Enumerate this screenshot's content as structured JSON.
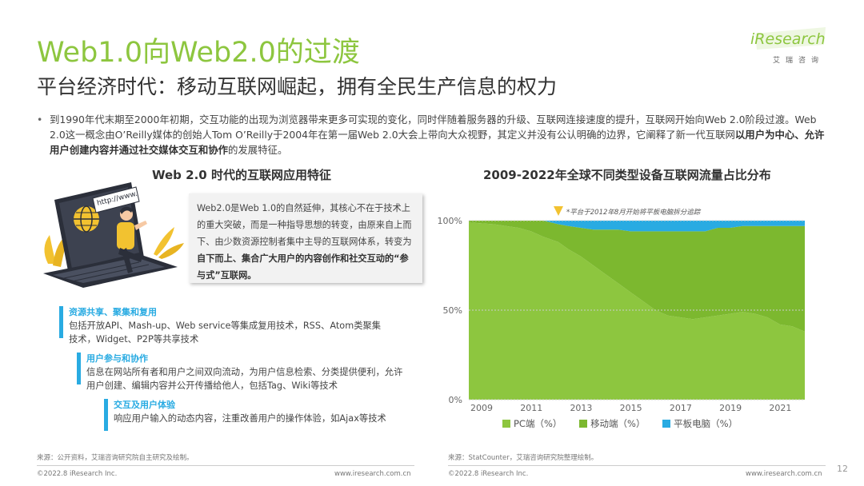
{
  "title": "Web1.0向Web2.0的过渡",
  "subtitle": "平台经济时代：移动互联网崛起，拥有全民生产信息的权力",
  "logo": {
    "word": "iResearch",
    "cn": "艾瑞咨询"
  },
  "intro": {
    "bullet": "•",
    "text_before_bold": "到1990年代末期至2000年初期，交互功能的出现为浏览器带来更多可实现的变化，同时伴随着服务器的升级、互联网连接速度的提升，互联网开始向Web 2.0阶段过渡。Web 2.0这一概念由O’Reilly媒体的创始人Tom O’Reilly于2004年在第一届Web 2.0大会上带向大众视野，其定义并没有公认明确的边界，它阐释了新一代互联网",
    "bold": "以用户为中心、允许用户创建内容并通过社交媒体交互和协作",
    "text_after_bold": "的发展特征。"
  },
  "left_panel": {
    "title": "Web 2.0 时代的互联网应用特征",
    "illustration_text": "http://www.",
    "description_plain": "Web2.0是Web 1.0的自然延伸，其核心不在于技术上的重大突破，而是一种指导思想的转变，由原来自上而下、由少数资源控制者集中主导的互联网体系，转变为",
    "description_bold": "自下而上、集合广大用户的内容创作和社交互动的“参与式”互联网。",
    "features": [
      {
        "title": "资源共享、聚集和复用",
        "text": "包括开放API、Mash-up、Web service等集成复用技术，RSS、Atom类聚集技术，Widget、P2P等共享技术"
      },
      {
        "title": "用户参与和协作",
        "text": "信息在网站所有者和用户之间双向流动，为用户信息检索、分类提供便利，允许用户创建、编辑内容并公开传播给他人，包括Tag、Wiki等技术"
      },
      {
        "title": "交互及用户体验",
        "text": "响应用户输入的动态内容，注重改善用户的操作体验，如Ajax等技术"
      }
    ],
    "source": "来源：公开资料，艾瑞咨询研究院自主研究及绘制。",
    "copyright": "©2022.8 iResearch Inc.",
    "url": "www.iresearch.com.cn"
  },
  "right_panel": {
    "source": "来源：StatCounter，艾瑞咨询研究院整理绘制。",
    "copyright": "©2022.8 iResearch Inc.",
    "url": "www.iresearch.com.cn"
  },
  "page_number": "12",
  "chart_data": {
    "type": "area",
    "title": "2009-2022年全球不同类型设备互联网流量占比分布",
    "annotation": "*平台于2012年8月开始将平板电脑拆分追踪",
    "x_ticks": [
      "2009",
      "2011",
      "2013",
      "2015",
      "2017",
      "2019",
      "2021"
    ],
    "y_ticks": [
      "0%",
      "50%",
      "100%"
    ],
    "ylim": [
      0,
      100
    ],
    "stacked": true,
    "x": [
      2009.0,
      2010.0,
      2011.0,
      2011.5,
      2012.0,
      2012.6,
      2013.0,
      2013.5,
      2014.0,
      2014.5,
      2015.0,
      2015.5,
      2016.0,
      2016.5,
      2017.0,
      2017.5,
      2018.0,
      2018.5,
      2019.0,
      2019.5,
      2020.0,
      2020.5,
      2021.0,
      2021.5,
      2022.0,
      2022.5
    ],
    "series": [
      {
        "name": "PC端（%）",
        "color": "#8dc63f",
        "values": [
          99,
          98,
          96,
          94,
          91,
          88,
          84,
          80,
          75,
          70,
          65,
          60,
          55,
          50,
          47,
          46,
          45,
          46,
          47,
          48,
          49,
          48,
          46,
          42,
          41,
          38
        ]
      },
      {
        "name": "移动端（%）",
        "color": "#7cb82f",
        "values": [
          1,
          2,
          4,
          6,
          9,
          10,
          13,
          16,
          20,
          25,
          30,
          34,
          39,
          44,
          47,
          48,
          49,
          48,
          49,
          48,
          48,
          49,
          51,
          55,
          56,
          59
        ]
      },
      {
        "name": "平板电脑（%）",
        "color": "#29abe2",
        "values": [
          0,
          0,
          0,
          0,
          0,
          2,
          3,
          4,
          5,
          5,
          5,
          6,
          6,
          6,
          6,
          6,
          6,
          6,
          4,
          4,
          3,
          3,
          3,
          3,
          3,
          3
        ]
      }
    ]
  }
}
